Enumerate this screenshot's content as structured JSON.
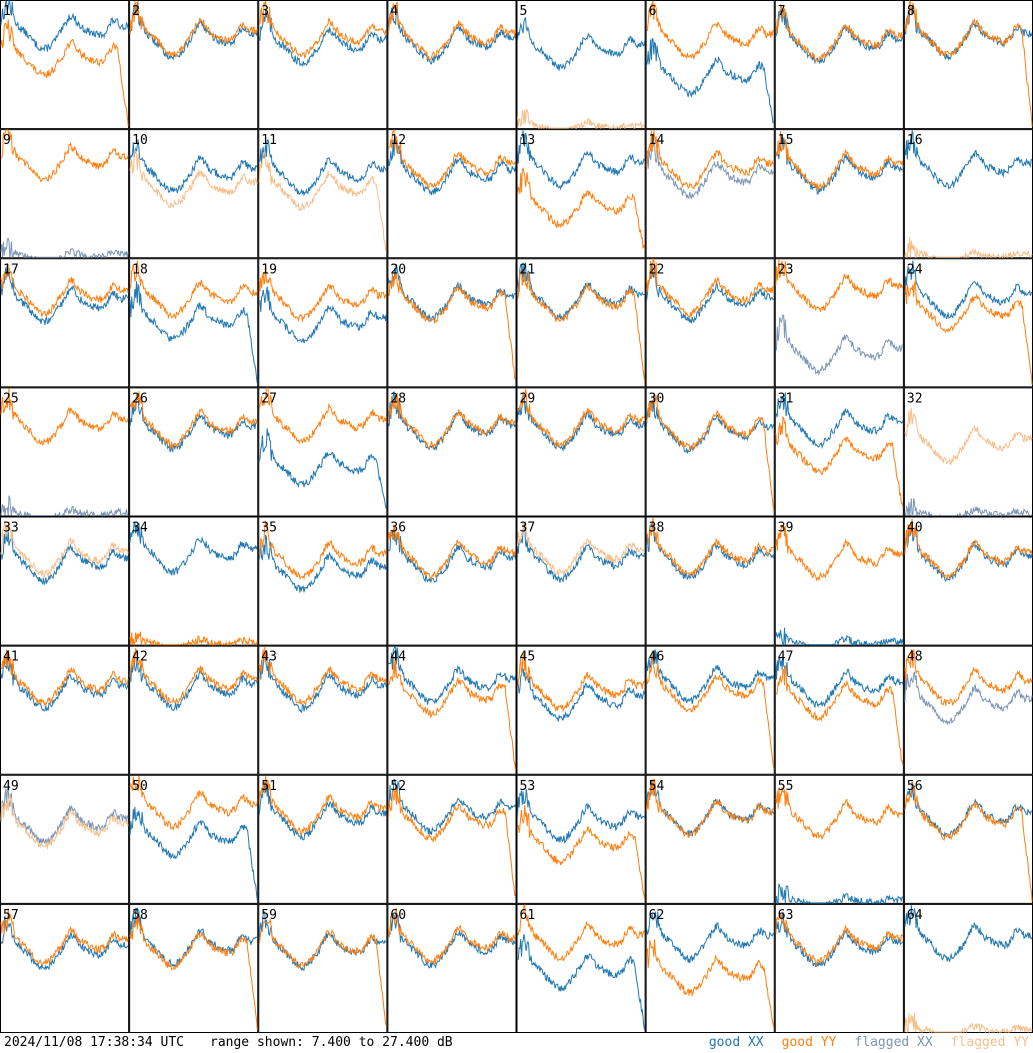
{
  "footer": {
    "timestamp": "2024/11/08 17:38:34 UTC",
    "range_text": "range shown: 7.400 to 27.400 dB"
  },
  "legend": [
    {
      "label": "good XX",
      "color": "#1f77b4"
    },
    {
      "label": "good YY",
      "color": "#ff7f0e"
    },
    {
      "label": "flagged XX",
      "color": "#7a96b4"
    },
    {
      "label": "flagged YY",
      "color": "#f8be8a"
    }
  ],
  "chart_data": {
    "type": "line",
    "ylim": [
      7.4,
      27.4
    ],
    "yunit": "dB",
    "grid_rows": 8,
    "grid_cols": 8,
    "colors": {
      "good_xx": "#1f77b4",
      "good_yy": "#ff7f0e",
      "flagged_xx": "#7a96b4",
      "flagged_yy": "#f8be8a"
    },
    "panels": [
      {
        "label": "1",
        "xx": "good",
        "yy": "good",
        "xx_level": 22.8,
        "yy_level": 18.6,
        "yy_drop": true,
        "xx_drop": false
      },
      {
        "label": "2",
        "xx": "good",
        "yy": "good",
        "xx_level": 21.5,
        "yy_level": 22.0,
        "yy_drop": false,
        "xx_drop": false
      },
      {
        "label": "3",
        "xx": "good",
        "yy": "good",
        "xx_level": 20.6,
        "yy_level": 21.8,
        "yy_drop": false,
        "xx_drop": false
      },
      {
        "label": "4",
        "xx": "good",
        "yy": "good",
        "xx_level": 21.0,
        "yy_level": 21.6,
        "yy_drop": false,
        "xx_drop": false
      },
      {
        "label": "5",
        "xx": "good",
        "yy": "flagged",
        "xx_level": 19.8,
        "yy_level": 7.6,
        "yy_drop": false,
        "xx_drop": false
      },
      {
        "label": "6",
        "xx": "good",
        "yy": "good",
        "xx_level": 15.8,
        "yy_level": 21.5,
        "yy_drop": false,
        "xx_drop": true
      },
      {
        "label": "7",
        "xx": "good",
        "yy": "good",
        "xx_level": 20.8,
        "yy_level": 21.2,
        "yy_drop": false,
        "xx_drop": false
      },
      {
        "label": "8",
        "xx": "good",
        "yy": "good",
        "xx_level": 21.6,
        "yy_level": 21.8,
        "yy_drop": true,
        "xx_drop": false
      },
      {
        "label": "9",
        "xx": "flagged",
        "yy": "good",
        "xx_level": 7.6,
        "yy_level": 22.5,
        "yy_drop": false,
        "xx_drop": false
      },
      {
        "label": "10",
        "xx": "good",
        "yy": "flagged",
        "xx_level": 20.7,
        "yy_level": 18.5,
        "yy_drop": false,
        "xx_drop": false
      },
      {
        "label": "11",
        "xx": "good",
        "yy": "flagged",
        "xx_level": 20.5,
        "yy_level": 18.2,
        "yy_drop": true,
        "xx_drop": false
      },
      {
        "label": "12",
        "xx": "good",
        "yy": "good",
        "xx_level": 20.5,
        "yy_level": 21.5,
        "yy_drop": false,
        "xx_drop": false
      },
      {
        "label": "13",
        "xx": "good",
        "yy": "good",
        "xx_level": 21.6,
        "yy_level": 15.4,
        "yy_drop": true,
        "xx_drop": false
      },
      {
        "label": "14",
        "xx": "flagged",
        "yy": "good",
        "xx_level": 20.0,
        "yy_level": 21.5,
        "yy_drop": false,
        "xx_drop": false
      },
      {
        "label": "15",
        "xx": "good",
        "yy": "good",
        "xx_level": 20.8,
        "yy_level": 21.4,
        "yy_drop": false,
        "xx_drop": false
      },
      {
        "label": "16",
        "xx": "good",
        "yy": "flagged",
        "xx_level": 21.5,
        "yy_level": 7.6,
        "yy_drop": false,
        "xx_drop": false
      },
      {
        "label": "17",
        "xx": "good",
        "yy": "good",
        "xx_level": 20.5,
        "yy_level": 21.8,
        "yy_drop": false,
        "xx_drop": false
      },
      {
        "label": "18",
        "xx": "good",
        "yy": "good",
        "xx_level": 17.8,
        "yy_level": 21.5,
        "yy_drop": false,
        "xx_drop": true
      },
      {
        "label": "19",
        "xx": "good",
        "yy": "good",
        "xx_level": 17.5,
        "yy_level": 21.0,
        "yy_drop": false,
        "xx_drop": false
      },
      {
        "label": "20",
        "xx": "good",
        "yy": "good",
        "xx_level": 21.0,
        "yy_level": 20.6,
        "yy_drop": true,
        "xx_drop": false
      },
      {
        "label": "21",
        "xx": "good",
        "yy": "good",
        "xx_level": 21.2,
        "yy_level": 20.8,
        "yy_drop": true,
        "xx_drop": false
      },
      {
        "label": "22",
        "xx": "good",
        "yy": "good",
        "xx_level": 20.8,
        "yy_level": 21.8,
        "yy_drop": false,
        "xx_drop": false
      },
      {
        "label": "23",
        "xx": "flagged",
        "yy": "good",
        "xx_level": 12.8,
        "yy_level": 22.4,
        "yy_drop": false,
        "xx_drop": false
      },
      {
        "label": "24",
        "xx": "good",
        "yy": "good",
        "xx_level": 21.4,
        "yy_level": 19.2,
        "yy_drop": true,
        "xx_drop": false
      },
      {
        "label": "25",
        "xx": "flagged",
        "yy": "good",
        "xx_level": 7.6,
        "yy_level": 21.8,
        "yy_drop": false,
        "xx_drop": false
      },
      {
        "label": "26",
        "xx": "good",
        "yy": "good",
        "xx_level": 20.8,
        "yy_level": 21.4,
        "yy_drop": false,
        "xx_drop": false
      },
      {
        "label": "27",
        "xx": "good",
        "yy": "good",
        "xx_level": 15.2,
        "yy_level": 22.0,
        "yy_drop": false,
        "xx_drop": true
      },
      {
        "label": "28",
        "xx": "good",
        "yy": "good",
        "xx_level": 21.0,
        "yy_level": 21.4,
        "yy_drop": false,
        "xx_drop": false
      },
      {
        "label": "29",
        "xx": "good",
        "yy": "good",
        "xx_level": 21.0,
        "yy_level": 21.6,
        "yy_drop": false,
        "xx_drop": false
      },
      {
        "label": "30",
        "xx": "good",
        "yy": "good",
        "xx_level": 20.6,
        "yy_level": 21.0,
        "yy_drop": true,
        "xx_drop": false
      },
      {
        "label": "31",
        "xx": "good",
        "yy": "good",
        "xx_level": 21.5,
        "yy_level": 17.2,
        "yy_drop": true,
        "xx_drop": false
      },
      {
        "label": "32",
        "xx": "flagged",
        "yy": "flagged",
        "xx_level": 7.6,
        "yy_level": 18.8,
        "yy_drop": false,
        "xx_drop": false
      },
      {
        "label": "33",
        "xx": "good",
        "yy": "flagged",
        "xx_level": 20.4,
        "yy_level": 21.4,
        "yy_drop": false,
        "xx_drop": false
      },
      {
        "label": "34",
        "xx": "good",
        "yy": "good",
        "xx_level": 21.8,
        "yy_level": 7.6,
        "yy_drop": false,
        "xx_drop": false
      },
      {
        "label": "35",
        "xx": "good",
        "yy": "good",
        "xx_level": 19.0,
        "yy_level": 21.0,
        "yy_drop": false,
        "xx_drop": false
      },
      {
        "label": "36",
        "xx": "good",
        "yy": "good",
        "xx_level": 20.4,
        "yy_level": 21.2,
        "yy_drop": false,
        "xx_drop": false
      },
      {
        "label": "37",
        "xx": "good",
        "yy": "flagged",
        "xx_level": 20.6,
        "yy_level": 21.6,
        "yy_drop": false,
        "xx_drop": false
      },
      {
        "label": "38",
        "xx": "good",
        "yy": "good",
        "xx_level": 20.8,
        "yy_level": 21.4,
        "yy_drop": false,
        "xx_drop": false
      },
      {
        "label": "39",
        "xx": "good",
        "yy": "good",
        "xx_level": 7.6,
        "yy_level": 21.0,
        "yy_drop": false,
        "xx_drop": false
      },
      {
        "label": "40",
        "xx": "good",
        "yy": "good",
        "xx_level": 20.8,
        "yy_level": 21.2,
        "yy_drop": false,
        "xx_drop": false
      },
      {
        "label": "41",
        "xx": "good",
        "yy": "good",
        "xx_level": 20.6,
        "yy_level": 21.4,
        "yy_drop": false,
        "xx_drop": false
      },
      {
        "label": "42",
        "xx": "good",
        "yy": "good",
        "xx_level": 20.8,
        "yy_level": 21.6,
        "yy_drop": false,
        "xx_drop": false
      },
      {
        "label": "43",
        "xx": "good",
        "yy": "good",
        "xx_level": 20.6,
        "yy_level": 21.6,
        "yy_drop": false,
        "xx_drop": false
      },
      {
        "label": "44",
        "xx": "good",
        "yy": "good",
        "xx_level": 21.6,
        "yy_level": 19.8,
        "yy_drop": true,
        "xx_drop": false
      },
      {
        "label": "45",
        "xx": "good",
        "yy": "good",
        "xx_level": 19.0,
        "yy_level": 20.6,
        "yy_drop": false,
        "xx_drop": false
      },
      {
        "label": "46",
        "xx": "good",
        "yy": "good",
        "xx_level": 21.8,
        "yy_level": 20.5,
        "yy_drop": true,
        "xx_drop": false
      },
      {
        "label": "47",
        "xx": "good",
        "yy": "good",
        "xx_level": 21.2,
        "yy_level": 19.2,
        "yy_drop": true,
        "xx_drop": false
      },
      {
        "label": "48",
        "xx": "flagged",
        "yy": "good",
        "xx_level": 18.6,
        "yy_level": 21.4,
        "yy_drop": false,
        "xx_drop": false
      },
      {
        "label": "49",
        "xx": "flagged",
        "yy": "flagged",
        "xx_level": 20.0,
        "yy_level": 19.2,
        "yy_drop": false,
        "xx_drop": false
      },
      {
        "label": "50",
        "xx": "good",
        "yy": "good",
        "xx_level": 17.8,
        "yy_level": 22.4,
        "yy_drop": false,
        "xx_drop": true
      },
      {
        "label": "51",
        "xx": "good",
        "yy": "good",
        "xx_level": 20.8,
        "yy_level": 21.6,
        "yy_drop": false,
        "xx_drop": false
      },
      {
        "label": "52",
        "xx": "good",
        "yy": "good",
        "xx_level": 21.6,
        "yy_level": 20.4,
        "yy_drop": true,
        "xx_drop": false
      },
      {
        "label": "53",
        "xx": "good",
        "yy": "good",
        "xx_level": 20.2,
        "yy_level": 16.8,
        "yy_drop": true,
        "xx_drop": false
      },
      {
        "label": "54",
        "xx": "good",
        "yy": "good",
        "xx_level": 21.2,
        "yy_level": 21.0,
        "yy_drop": false,
        "xx_drop": false
      },
      {
        "label": "55",
        "xx": "good",
        "yy": "good",
        "xx_level": 7.6,
        "yy_level": 20.8,
        "yy_drop": false,
        "xx_drop": false
      },
      {
        "label": "56",
        "xx": "good",
        "yy": "good",
        "xx_level": 21.0,
        "yy_level": 20.6,
        "yy_drop": true,
        "xx_drop": false
      },
      {
        "label": "57",
        "xx": "good",
        "yy": "good",
        "xx_level": 20.4,
        "yy_level": 21.2,
        "yy_drop": false,
        "xx_drop": false
      },
      {
        "label": "58",
        "xx": "good",
        "yy": "good",
        "xx_level": 21.0,
        "yy_level": 20.6,
        "yy_drop": true,
        "xx_drop": false
      },
      {
        "label": "59",
        "xx": "good",
        "yy": "good",
        "xx_level": 20.6,
        "yy_level": 20.8,
        "yy_drop": true,
        "xx_drop": false
      },
      {
        "label": "60",
        "xx": "good",
        "yy": "good",
        "xx_level": 20.8,
        "yy_level": 21.4,
        "yy_drop": false,
        "xx_drop": false
      },
      {
        "label": "61",
        "xx": "good",
        "yy": "good",
        "xx_level": 17.2,
        "yy_level": 22.0,
        "yy_drop": false,
        "xx_drop": true
      },
      {
        "label": "62",
        "xx": "good",
        "yy": "good",
        "xx_level": 21.8,
        "yy_level": 16.6,
        "yy_drop": true,
        "xx_drop": false
      },
      {
        "label": "63",
        "xx": "good",
        "yy": "good",
        "xx_level": 20.8,
        "yy_level": 21.4,
        "yy_drop": false,
        "xx_drop": false
      },
      {
        "label": "64",
        "xx": "good",
        "yy": "flagged",
        "xx_level": 21.8,
        "yy_level": 7.6,
        "yy_drop": false,
        "xx_drop": false
      }
    ]
  }
}
